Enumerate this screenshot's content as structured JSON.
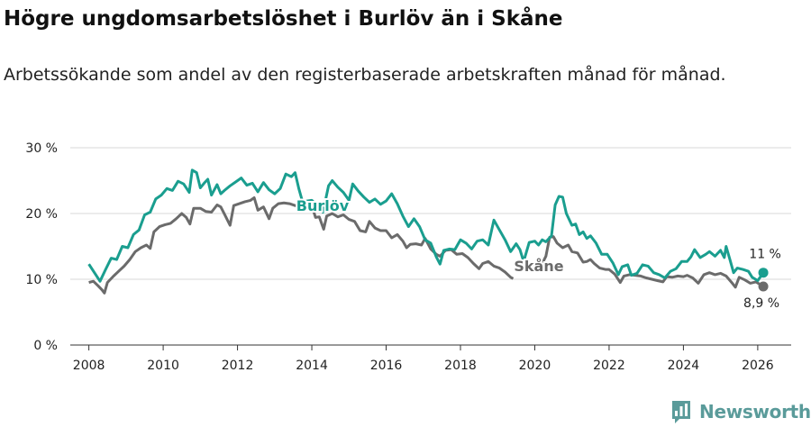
{
  "header": {
    "title": "Högre ungdomsarbetslöshet i Burlöv än i Skåne",
    "subtitle": "Arbetssökande som andel av den registerbaserade arbetskraften månad för månad."
  },
  "colors": {
    "burlov": "#1a9e8f",
    "skane": "#6b6b6b",
    "grid": "#d9d9d9",
    "axis": "#333333",
    "brand": "#5a9b9a"
  },
  "brand": {
    "name": "Newsworthy",
    "icon": "bar-chart-icon"
  },
  "chart_data": {
    "type": "line",
    "title": "Högre ungdomsarbetslöshet i Burlöv än i Skåne",
    "xlabel": "",
    "ylabel": "",
    "xlim": [
      2007.5,
      2026.9
    ],
    "ylim": [
      0,
      30
    ],
    "y_ticks": [
      0,
      10,
      20,
      30
    ],
    "y_tick_labels": [
      "0 %",
      "10 %",
      "20 %",
      "30 %"
    ],
    "x_ticks": [
      2008,
      2010,
      2012,
      2014,
      2016,
      2018,
      2020,
      2022,
      2024,
      2026
    ],
    "x_tick_labels": [
      "2008",
      "2010",
      "2012",
      "2014",
      "2016",
      "2018",
      "2020",
      "2022",
      "2024",
      "2026"
    ],
    "grid": true,
    "series": [
      {
        "name": "Burlöv",
        "end_label": "11 %",
        "points": [
          [
            2008.0,
            12.3
          ],
          [
            2008.15,
            11.0
          ],
          [
            2008.3,
            9.7
          ],
          [
            2008.45,
            11.5
          ],
          [
            2008.6,
            13.2
          ],
          [
            2008.75,
            13.0
          ],
          [
            2008.9,
            15.0
          ],
          [
            2009.05,
            14.8
          ],
          [
            2009.2,
            16.8
          ],
          [
            2009.35,
            17.5
          ],
          [
            2009.5,
            19.8
          ],
          [
            2009.65,
            20.2
          ],
          [
            2009.8,
            22.2
          ],
          [
            2009.95,
            22.8
          ],
          [
            2010.1,
            23.8
          ],
          [
            2010.25,
            23.5
          ],
          [
            2010.4,
            24.9
          ],
          [
            2010.55,
            24.5
          ],
          [
            2010.7,
            23.2
          ],
          [
            2010.78,
            26.6
          ],
          [
            2010.9,
            26.2
          ],
          [
            2011.0,
            23.9
          ],
          [
            2011.1,
            24.6
          ],
          [
            2011.2,
            25.2
          ],
          [
            2011.3,
            22.8
          ],
          [
            2011.45,
            24.4
          ],
          [
            2011.55,
            23.0
          ],
          [
            2011.65,
            23.5
          ],
          [
            2011.8,
            24.2
          ],
          [
            2011.95,
            24.8
          ],
          [
            2012.1,
            25.4
          ],
          [
            2012.25,
            24.3
          ],
          [
            2012.4,
            24.6
          ],
          [
            2012.55,
            23.3
          ],
          [
            2012.7,
            24.7
          ],
          [
            2012.85,
            23.6
          ],
          [
            2013.0,
            23.0
          ],
          [
            2013.15,
            23.8
          ],
          [
            2013.3,
            26.0
          ],
          [
            2013.45,
            25.6
          ],
          [
            2013.55,
            26.2
          ],
          [
            2013.65,
            23.8
          ],
          [
            2013.75,
            21.8
          ],
          [
            2014.0,
            22.0
          ],
          [
            2014.15,
            21.2
          ],
          [
            2014.3,
            20.2
          ],
          [
            2014.45,
            24.2
          ],
          [
            2014.55,
            25.0
          ],
          [
            2014.7,
            24.0
          ],
          [
            2014.85,
            23.2
          ],
          [
            2015.0,
            22.0
          ],
          [
            2015.1,
            24.5
          ],
          [
            2015.25,
            23.4
          ],
          [
            2015.4,
            22.5
          ],
          [
            2015.55,
            21.7
          ],
          [
            2015.7,
            22.2
          ],
          [
            2015.85,
            21.4
          ],
          [
            2016.0,
            21.9
          ],
          [
            2016.15,
            23.0
          ],
          [
            2016.3,
            21.5
          ],
          [
            2016.45,
            19.6
          ],
          [
            2016.6,
            18.0
          ],
          [
            2016.75,
            19.2
          ],
          [
            2016.9,
            18.0
          ],
          [
            2017.05,
            16.0
          ],
          [
            2017.2,
            15.5
          ],
          [
            2017.35,
            13.4
          ],
          [
            2017.45,
            12.3
          ],
          [
            2017.55,
            14.4
          ],
          [
            2017.7,
            14.6
          ],
          [
            2017.85,
            14.5
          ],
          [
            2018.0,
            16.0
          ],
          [
            2018.15,
            15.5
          ],
          [
            2018.3,
            14.6
          ],
          [
            2018.45,
            15.8
          ],
          [
            2018.6,
            16.0
          ],
          [
            2018.75,
            15.2
          ],
          [
            2018.9,
            19.0
          ],
          [
            2019.05,
            17.5
          ],
          [
            2019.2,
            16.0
          ],
          [
            2019.35,
            14.2
          ],
          [
            2019.5,
            15.4
          ],
          [
            2019.6,
            14.5
          ],
          [
            2019.7,
            12.7
          ],
          [
            2019.85,
            15.6
          ],
          [
            2020.0,
            15.8
          ],
          [
            2020.1,
            15.2
          ],
          [
            2020.2,
            16.0
          ],
          [
            2020.3,
            15.7
          ],
          [
            2020.45,
            16.6
          ],
          [
            2020.55,
            21.3
          ],
          [
            2020.65,
            22.6
          ],
          [
            2020.75,
            22.5
          ],
          [
            2020.85,
            20.0
          ],
          [
            2021.0,
            18.2
          ],
          [
            2021.1,
            18.4
          ],
          [
            2021.2,
            16.8
          ],
          [
            2021.3,
            17.2
          ],
          [
            2021.4,
            16.2
          ],
          [
            2021.5,
            16.6
          ],
          [
            2021.65,
            15.5
          ],
          [
            2021.8,
            13.8
          ],
          [
            2021.95,
            13.8
          ],
          [
            2022.1,
            12.5
          ],
          [
            2022.25,
            10.7
          ],
          [
            2022.35,
            11.9
          ],
          [
            2022.5,
            12.2
          ],
          [
            2022.6,
            10.6
          ],
          [
            2022.75,
            10.9
          ],
          [
            2022.9,
            12.2
          ],
          [
            2023.05,
            12.0
          ],
          [
            2023.2,
            11.0
          ],
          [
            2023.35,
            10.7
          ],
          [
            2023.5,
            10.2
          ],
          [
            2023.65,
            11.2
          ],
          [
            2023.8,
            11.6
          ],
          [
            2023.95,
            12.7
          ],
          [
            2024.1,
            12.7
          ],
          [
            2024.2,
            13.4
          ],
          [
            2024.3,
            14.5
          ],
          [
            2024.45,
            13.3
          ],
          [
            2024.6,
            13.8
          ],
          [
            2024.7,
            14.2
          ],
          [
            2024.85,
            13.5
          ],
          [
            2025.0,
            14.4
          ],
          [
            2025.1,
            13.3
          ],
          [
            2025.15,
            15.0
          ],
          [
            2025.25,
            13.0
          ],
          [
            2025.35,
            11.0
          ],
          [
            2025.45,
            11.7
          ],
          [
            2025.6,
            11.5
          ],
          [
            2025.75,
            11.2
          ],
          [
            2025.85,
            10.3
          ],
          [
            2026.0,
            9.8
          ],
          [
            2026.15,
            11.0
          ]
        ]
      },
      {
        "name": "Skåne",
        "end_label": "8,9 %",
        "points": [
          [
            2008.0,
            9.5
          ],
          [
            2008.12,
            9.7
          ],
          [
            2008.25,
            9.0
          ],
          [
            2008.35,
            8.4
          ],
          [
            2008.42,
            7.9
          ],
          [
            2008.5,
            9.5
          ],
          [
            2008.65,
            10.4
          ],
          [
            2008.8,
            11.2
          ],
          [
            2008.95,
            12.0
          ],
          [
            2009.1,
            13.0
          ],
          [
            2009.25,
            14.2
          ],
          [
            2009.4,
            14.8
          ],
          [
            2009.55,
            15.2
          ],
          [
            2009.65,
            14.7
          ],
          [
            2009.75,
            17.2
          ],
          [
            2009.9,
            18.0
          ],
          [
            2010.05,
            18.3
          ],
          [
            2010.2,
            18.5
          ],
          [
            2010.35,
            19.2
          ],
          [
            2010.5,
            20.0
          ],
          [
            2010.62,
            19.4
          ],
          [
            2010.72,
            18.4
          ],
          [
            2010.82,
            20.8
          ],
          [
            2011.0,
            20.8
          ],
          [
            2011.15,
            20.3
          ],
          [
            2011.3,
            20.2
          ],
          [
            2011.45,
            21.3
          ],
          [
            2011.55,
            21.0
          ],
          [
            2011.65,
            19.9
          ],
          [
            2011.8,
            18.2
          ],
          [
            2011.9,
            21.2
          ],
          [
            2012.05,
            21.5
          ],
          [
            2012.2,
            21.8
          ],
          [
            2012.35,
            22.0
          ],
          [
            2012.45,
            22.4
          ],
          [
            2012.55,
            20.5
          ],
          [
            2012.7,
            21.0
          ],
          [
            2012.85,
            19.2
          ],
          [
            2012.95,
            20.8
          ],
          [
            2013.1,
            21.5
          ],
          [
            2013.25,
            21.6
          ],
          [
            2013.4,
            21.5
          ],
          [
            2013.55,
            21.2
          ],
          [
            2013.7,
            21.2
          ],
          [
            2014.0,
            21.2
          ],
          [
            2014.1,
            19.4
          ],
          [
            2014.2,
            19.5
          ],
          [
            2014.32,
            17.6
          ],
          [
            2014.4,
            19.6
          ],
          [
            2014.55,
            20.0
          ],
          [
            2014.7,
            19.5
          ],
          [
            2014.85,
            19.8
          ],
          [
            2015.0,
            19.1
          ],
          [
            2015.15,
            18.8
          ],
          [
            2015.3,
            17.4
          ],
          [
            2015.45,
            17.2
          ],
          [
            2015.55,
            18.8
          ],
          [
            2015.7,
            17.8
          ],
          [
            2015.85,
            17.4
          ],
          [
            2016.0,
            17.4
          ],
          [
            2016.15,
            16.3
          ],
          [
            2016.3,
            16.8
          ],
          [
            2016.45,
            15.8
          ],
          [
            2016.55,
            14.8
          ],
          [
            2016.65,
            15.3
          ],
          [
            2016.8,
            15.4
          ],
          [
            2016.95,
            15.2
          ],
          [
            2017.05,
            16.2
          ],
          [
            2017.2,
            14.6
          ],
          [
            2017.35,
            13.8
          ],
          [
            2017.45,
            13.5
          ],
          [
            2017.6,
            14.4
          ],
          [
            2017.75,
            14.5
          ],
          [
            2017.9,
            13.8
          ],
          [
            2018.05,
            13.9
          ],
          [
            2018.2,
            13.3
          ],
          [
            2018.35,
            12.4
          ],
          [
            2018.5,
            11.6
          ],
          [
            2018.6,
            12.4
          ],
          [
            2018.75,
            12.7
          ],
          [
            2018.9,
            12.0
          ],
          [
            2019.05,
            11.7
          ],
          [
            2019.2,
            11.1
          ],
          [
            2019.35,
            10.3
          ],
          [
            2019.42,
            10.1
          ]
        ],
        "points_b": [
          [
            2019.85,
            11.4
          ],
          [
            2020.0,
            11.6
          ],
          [
            2020.15,
            11.8
          ],
          [
            2020.3,
            13.5
          ],
          [
            2020.4,
            16.4
          ],
          [
            2020.5,
            16.5
          ],
          [
            2020.6,
            15.5
          ],
          [
            2020.75,
            14.8
          ],
          [
            2020.9,
            15.2
          ],
          [
            2021.0,
            14.2
          ],
          [
            2021.15,
            14.0
          ],
          [
            2021.3,
            12.6
          ],
          [
            2021.4,
            12.7
          ],
          [
            2021.5,
            13.0
          ],
          [
            2021.6,
            12.4
          ],
          [
            2021.75,
            11.7
          ],
          [
            2021.9,
            11.5
          ],
          [
            2022.0,
            11.5
          ],
          [
            2022.15,
            10.8
          ],
          [
            2022.3,
            9.5
          ],
          [
            2022.4,
            10.5
          ],
          [
            2022.55,
            10.7
          ],
          [
            2022.7,
            10.6
          ],
          [
            2022.85,
            10.5
          ],
          [
            2023.0,
            10.2
          ],
          [
            2023.15,
            10.0
          ],
          [
            2023.3,
            9.8
          ],
          [
            2023.45,
            9.6
          ],
          [
            2023.55,
            10.4
          ],
          [
            2023.7,
            10.3
          ],
          [
            2023.85,
            10.5
          ],
          [
            2024.0,
            10.4
          ],
          [
            2024.1,
            10.6
          ],
          [
            2024.25,
            10.2
          ],
          [
            2024.4,
            9.4
          ],
          [
            2024.55,
            10.7
          ],
          [
            2024.7,
            11.0
          ],
          [
            2024.85,
            10.7
          ],
          [
            2025.0,
            10.9
          ],
          [
            2025.15,
            10.5
          ],
          [
            2025.3,
            9.5
          ],
          [
            2025.4,
            8.8
          ],
          [
            2025.5,
            10.3
          ],
          [
            2025.65,
            9.9
          ],
          [
            2025.8,
            9.4
          ],
          [
            2025.95,
            9.6
          ],
          [
            2026.15,
            8.9
          ]
        ]
      }
    ]
  }
}
